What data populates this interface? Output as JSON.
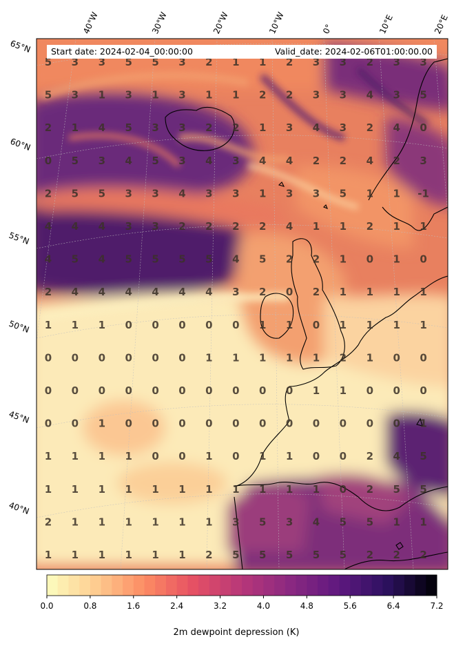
{
  "header": {
    "start_date": "Start date: 2024-02-04_00:00:00",
    "valid_date": "Valid_date: 2024-02-06T01:00:00.00"
  },
  "longitude_labels": [
    "40°W",
    "30°W",
    "20°W",
    "10°W",
    "0°",
    "10°E",
    "20°E"
  ],
  "latitude_labels": [
    "65°N",
    "60°N",
    "55°N",
    "50°N",
    "45°N",
    "40°N"
  ],
  "grid_values": [
    [
      "5",
      "3",
      "3",
      "5",
      "5",
      "3",
      "2",
      "1",
      "1",
      "2",
      "3",
      "3",
      "2",
      "3",
      "3"
    ],
    [
      "5",
      "3",
      "1",
      "3",
      "1",
      "3",
      "1",
      "1",
      "2",
      "2",
      "3",
      "3",
      "4",
      "3",
      "5"
    ],
    [
      "2",
      "1",
      "4",
      "5",
      "3",
      "3",
      "2",
      "2",
      "1",
      "3",
      "4",
      "3",
      "2",
      "4",
      "0"
    ],
    [
      "0",
      "5",
      "3",
      "4",
      "5",
      "3",
      "4",
      "3",
      "4",
      "4",
      "2",
      "2",
      "4",
      "2",
      "3"
    ],
    [
      "2",
      "5",
      "5",
      "3",
      "3",
      "4",
      "3",
      "3",
      "1",
      "3",
      "3",
      "5",
      "1",
      "1",
      "-1"
    ],
    [
      "4",
      "4",
      "4",
      "3",
      "3",
      "2",
      "2",
      "2",
      "2",
      "4",
      "1",
      "1",
      "2",
      "1",
      "1"
    ],
    [
      "4",
      "5",
      "4",
      "5",
      "5",
      "5",
      "5",
      "4",
      "5",
      "2",
      "2",
      "1",
      "0",
      "1",
      "0"
    ],
    [
      "2",
      "4",
      "4",
      "4",
      "4",
      "4",
      "4",
      "3",
      "2",
      "0",
      "2",
      "1",
      "1",
      "1",
      "1"
    ],
    [
      "1",
      "1",
      "1",
      "0",
      "0",
      "0",
      "0",
      "0",
      "1",
      "1",
      "0",
      "1",
      "1",
      "1",
      "1"
    ],
    [
      "0",
      "0",
      "0",
      "0",
      "0",
      "0",
      "1",
      "1",
      "1",
      "1",
      "1",
      "2",
      "1",
      "0",
      "0"
    ],
    [
      "0",
      "0",
      "0",
      "0",
      "0",
      "0",
      "0",
      "0",
      "0",
      "0",
      "1",
      "1",
      "0",
      "0",
      "0"
    ],
    [
      "0",
      "0",
      "1",
      "0",
      "0",
      "0",
      "0",
      "0",
      "0",
      "0",
      "0",
      "0",
      "0",
      "0",
      "1"
    ],
    [
      "1",
      "1",
      "1",
      "1",
      "0",
      "0",
      "1",
      "0",
      "1",
      "1",
      "0",
      "0",
      "2",
      "4",
      "5"
    ],
    [
      "1",
      "1",
      "1",
      "1",
      "1",
      "1",
      "1",
      "1",
      "1",
      "1",
      "1",
      "0",
      "2",
      "5",
      "5"
    ],
    [
      "2",
      "1",
      "1",
      "1",
      "1",
      "1",
      "1",
      "3",
      "5",
      "3",
      "4",
      "5",
      "5",
      "1",
      "1"
    ],
    [
      "1",
      "1",
      "1",
      "1",
      "1",
      "1",
      "2",
      "5",
      "5",
      "5",
      "5",
      "5",
      "2",
      "2",
      "2"
    ]
  ],
  "colorbar": {
    "title": "2m dewpoint depression (K)",
    "ticks": [
      "0.0",
      "0.8",
      "1.6",
      "2.4",
      "3.2",
      "4.0",
      "4.8",
      "5.6",
      "6.4",
      "7.2"
    ],
    "colormap": "magma_r",
    "range": [
      0.0,
      7.2
    ],
    "levels": 36
  },
  "colors": {
    "land_outline": "#000000",
    "graticule": "#bfbfbf",
    "value_text": "#3b3127"
  }
}
